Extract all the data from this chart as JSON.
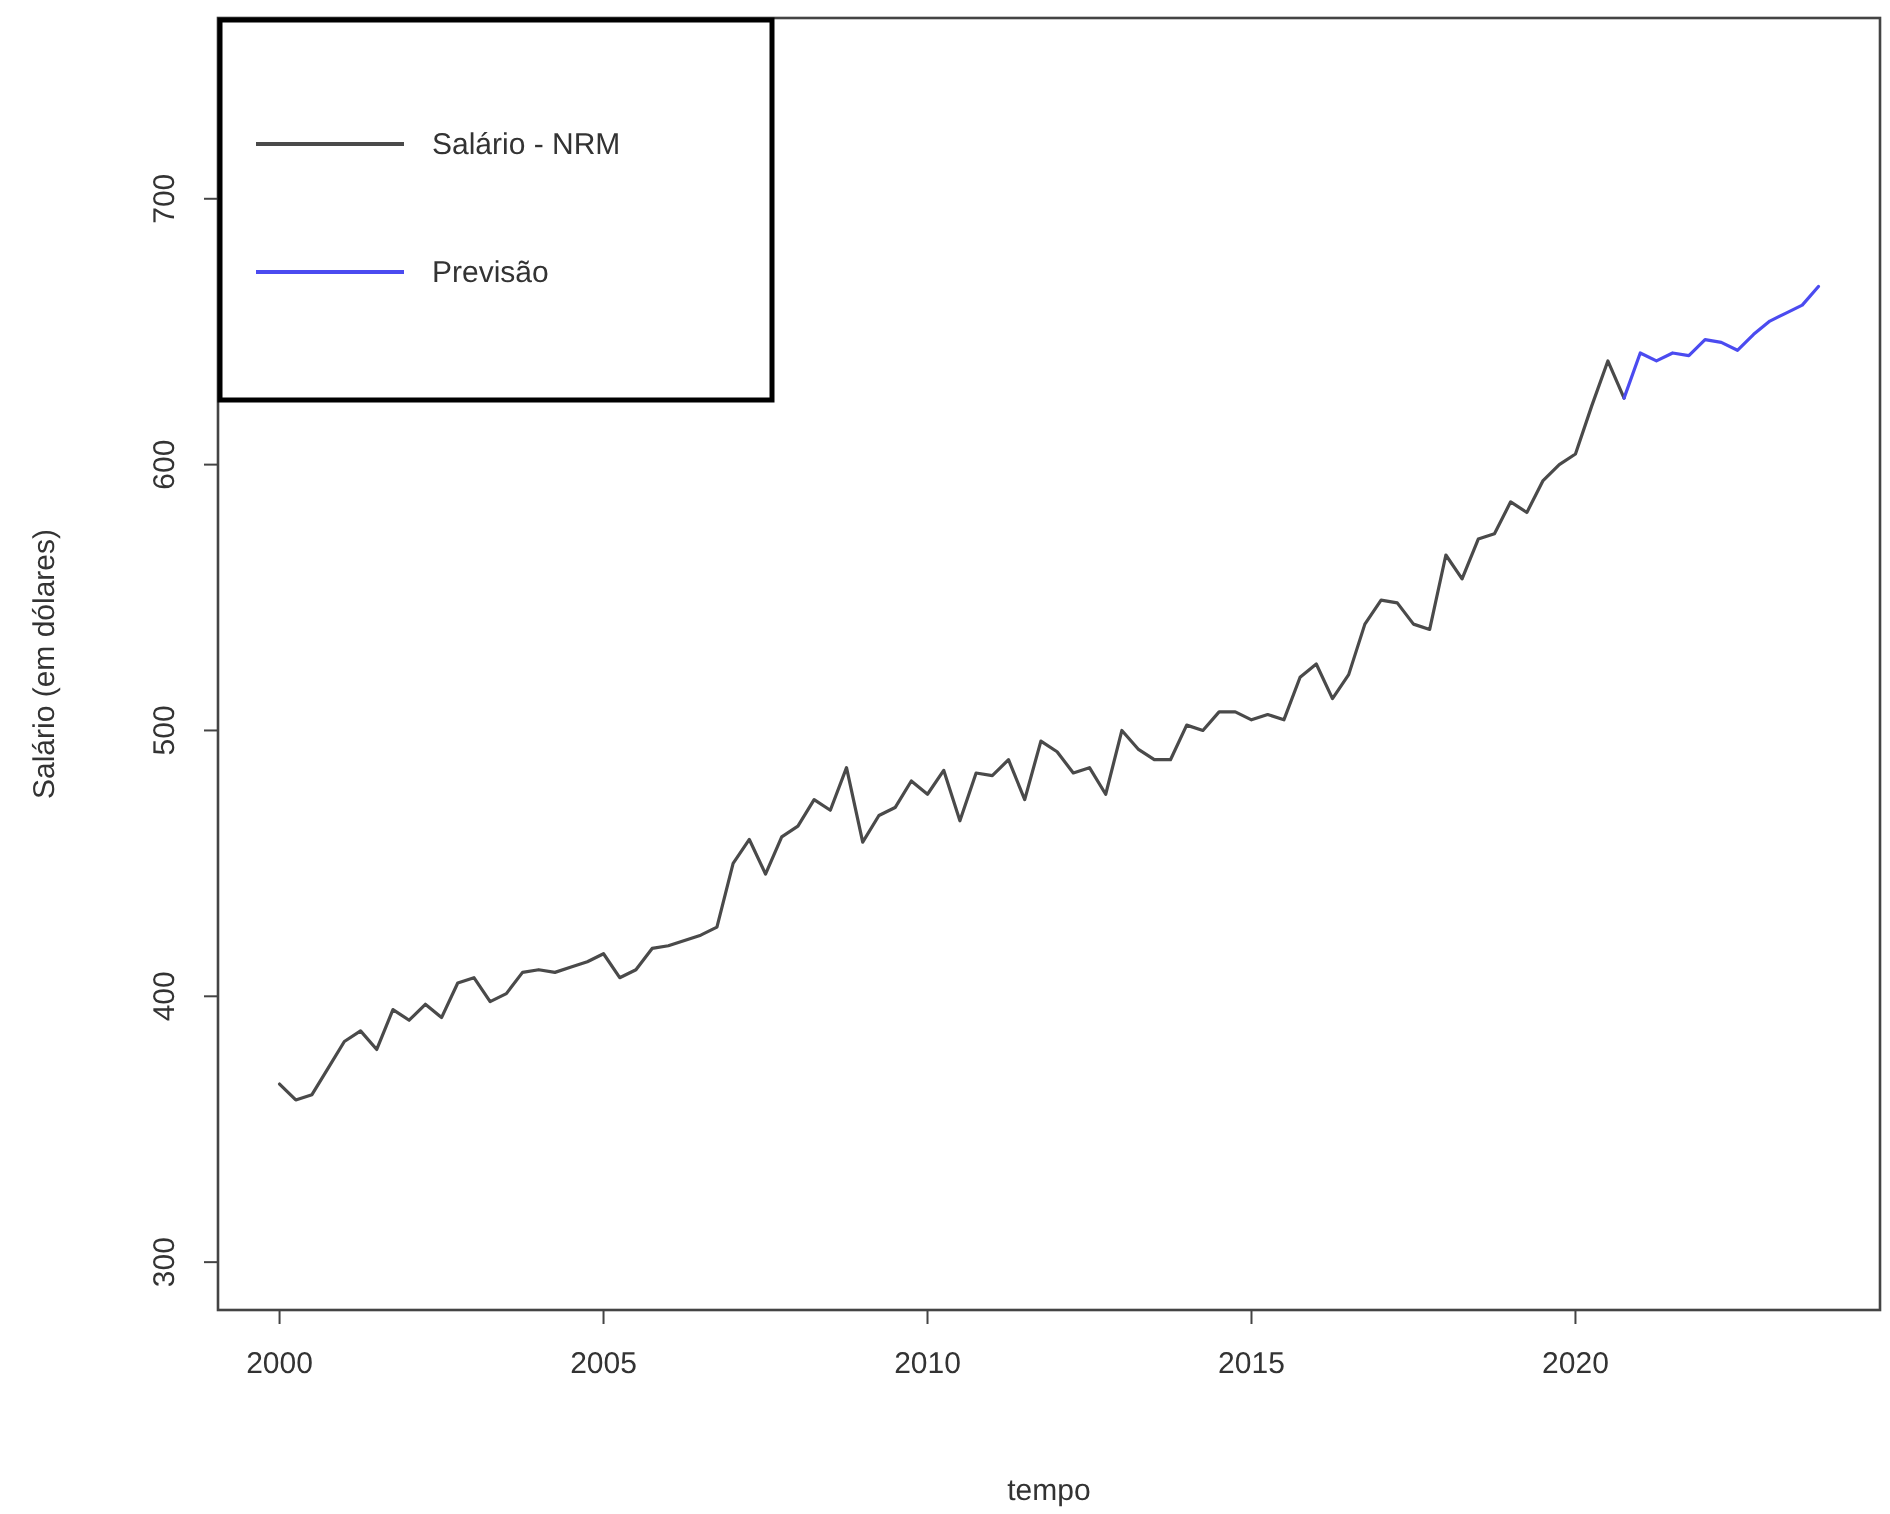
{
  "chart_data": {
    "type": "line",
    "xlabel": "tempo",
    "ylabel": "Salário (em dólares)",
    "xlim": [
      1999.05,
      2024.7
    ],
    "ylim": [
      282,
      768
    ],
    "xticks": [
      2000,
      2005,
      2010,
      2015,
      2020
    ],
    "yticks": [
      300,
      400,
      500,
      600,
      700
    ],
    "legend": "top left",
    "grid": false,
    "line_style": "solid",
    "series": [
      {
        "name": "Salário - NRM",
        "color": "#4a4a4a",
        "x": [
          2000,
          2000.25,
          2000.5,
          2000.75,
          2001,
          2001.25,
          2001.5,
          2001.75,
          2002,
          2002.25,
          2002.5,
          2002.75,
          2003,
          2003.25,
          2003.5,
          2003.75,
          2004,
          2004.25,
          2004.5,
          2004.75,
          2005,
          2005.25,
          2005.5,
          2005.75,
          2006,
          2006.25,
          2006.5,
          2006.75,
          2007,
          2007.25,
          2007.5,
          2007.75,
          2008,
          2008.25,
          2008.5,
          2008.75,
          2009,
          2009.25,
          2009.5,
          2009.75,
          2010,
          2010.25,
          2010.5,
          2010.75,
          2011,
          2011.25,
          2011.5,
          2011.75,
          2012,
          2012.25,
          2012.5,
          2012.75,
          2013,
          2013.25,
          2013.5,
          2013.75,
          2014,
          2014.25,
          2014.5,
          2014.75,
          2015,
          2015.25,
          2015.5,
          2015.75,
          2016,
          2016.25,
          2016.5,
          2016.75,
          2017,
          2017.25,
          2017.5,
          2017.75,
          2018,
          2018.25,
          2018.5,
          2018.75,
          2019,
          2019.25,
          2019.5,
          2019.75,
          2020,
          2020.25,
          2020.5,
          2020.75
        ],
        "values": [
          367,
          361,
          363,
          373,
          383,
          387,
          380,
          395,
          391,
          397,
          392,
          405,
          407,
          398,
          401,
          409,
          410,
          409,
          411,
          413,
          416,
          407,
          410,
          418,
          419,
          421,
          423,
          426,
          450,
          459,
          446,
          460,
          464,
          474,
          470,
          486,
          458,
          468,
          471,
          481,
          476,
          485,
          466,
          484,
          483,
          489,
          474,
          496,
          492,
          484,
          486,
          476,
          500,
          493,
          489,
          489,
          502,
          500,
          507,
          507,
          504,
          506,
          504,
          520,
          525,
          512,
          521,
          540,
          549,
          548,
          540,
          538,
          566,
          557,
          572,
          574,
          586,
          582,
          594,
          600,
          604,
          622,
          639,
          625
        ]
      },
      {
        "name": "Previsão",
        "color": "#4b4bf0",
        "x": [
          2020.75,
          2021,
          2021.25,
          2021.5,
          2021.75,
          2022,
          2022.25,
          2022.5,
          2022.75,
          2023,
          2023.25,
          2023.5,
          2023.75
        ],
        "values": [
          625,
          642,
          639,
          642,
          641,
          647,
          646,
          643,
          649,
          654,
          657,
          660,
          667
        ]
      }
    ]
  }
}
